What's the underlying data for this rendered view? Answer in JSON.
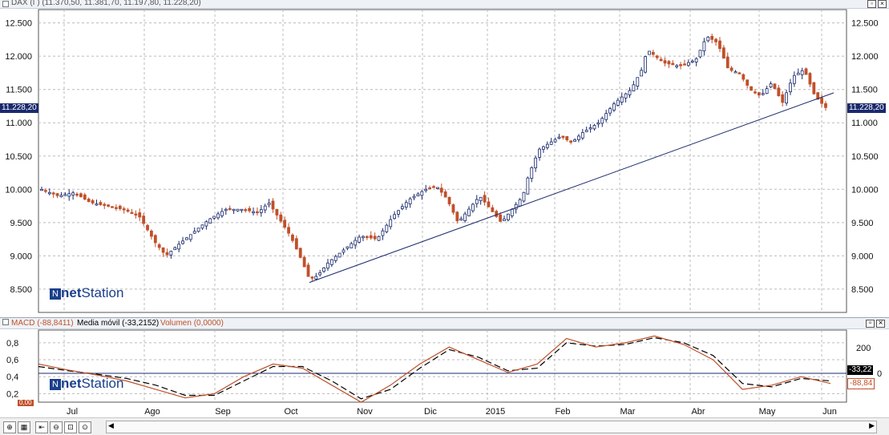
{
  "window": {
    "title": "DAX (I ) (11.370,50, 11.381,70, 11.197,80, 11.228,20)",
    "restore_btn": "▫",
    "close_btn": "×"
  },
  "sub_panel": {
    "macd_label": "MACD (-88,8411)",
    "ma_label": "Media móvil (-33,2152)",
    "vol_label": "Volumen (0,0000)",
    "restore_btn": "▫",
    "close_btn": "×"
  },
  "logo": {
    "brand": "net",
    "brand2": "Station"
  },
  "price_axis": {
    "ticks": [
      "12.500",
      "12.000",
      "11.500",
      "11.000",
      "10.500",
      "10.000",
      "9.500",
      "9.000",
      "8.500"
    ],
    "tick_values": [
      12500,
      12000,
      11500,
      11000,
      10500,
      10000,
      9500,
      9000,
      8500
    ],
    "current": "11.228,20"
  },
  "macd_axis": {
    "left_ticks": [
      "0,8",
      "0,6",
      "0,4",
      "0,2"
    ],
    "right_ticks": [
      "200",
      "0"
    ],
    "tag_ma": "-33,22",
    "tag_macd": "-88,84",
    "tag_left": "0,00"
  },
  "x_axis": {
    "labels": [
      "Jul",
      "Ago",
      "Sep",
      "Oct",
      "Nov",
      "Dic",
      "2015",
      "Feb",
      "Mar",
      "Abr",
      "May",
      "Jun"
    ]
  },
  "toolbar": {
    "icons": [
      "zoom-in-icon",
      "grid-icon",
      "scroll-left-icon",
      "zoom-out-icon",
      "zoom-region-icon",
      "zoom-fit-icon"
    ],
    "scroll_left": "◀",
    "scroll_right": "▶"
  },
  "colors": {
    "up": "#1a2a6c",
    "down": "#c0502a",
    "trend": "#1a2a6c",
    "macd": "#c0502a",
    "signal": "#000000"
  },
  "chart_data": [
    {
      "type": "candlestick",
      "title": "DAX (I ) (11.370,50, 11.381,70, 11.197,80, 11.228,20)",
      "ylim": [
        8150,
        12700
      ],
      "x": [
        "Jul",
        "Ago",
        "Sep",
        "Oct",
        "Nov",
        "Dic",
        "2015",
        "Feb",
        "Mar",
        "Abr",
        "May",
        "Jun"
      ],
      "close_path": [
        [
          0,
          10000
        ],
        [
          6,
          9900
        ],
        [
          12,
          9950
        ],
        [
          18,
          9800
        ],
        [
          24,
          9750
        ],
        [
          30,
          9700
        ],
        [
          36,
          9600
        ],
        [
          42,
          9200
        ],
        [
          46,
          9000
        ],
        [
          50,
          9150
        ],
        [
          56,
          9350
        ],
        [
          62,
          9550
        ],
        [
          68,
          9700
        ],
        [
          74,
          9700
        ],
        [
          80,
          9650
        ],
        [
          84,
          9800
        ],
        [
          88,
          9550
        ],
        [
          92,
          9300
        ],
        [
          96,
          8950
        ],
        [
          99,
          8650
        ],
        [
          102,
          8700
        ],
        [
          106,
          8900
        ],
        [
          112,
          9100
        ],
        [
          118,
          9300
        ],
        [
          124,
          9250
        ],
        [
          130,
          9600
        ],
        [
          136,
          9850
        ],
        [
          142,
          10000
        ],
        [
          146,
          10050
        ],
        [
          150,
          9850
        ],
        [
          154,
          9500
        ],
        [
          158,
          9700
        ],
        [
          162,
          9900
        ],
        [
          166,
          9700
        ],
        [
          170,
          9500
        ],
        [
          174,
          9700
        ],
        [
          178,
          9900
        ],
        [
          180,
          10200
        ],
        [
          184,
          10600
        ],
        [
          188,
          10700
        ],
        [
          192,
          10800
        ],
        [
          196,
          10700
        ],
        [
          200,
          10850
        ],
        [
          206,
          11000
        ],
        [
          212,
          11300
        ],
        [
          218,
          11500
        ],
        [
          222,
          11800
        ],
        [
          224,
          12100
        ],
        [
          230,
          11900
        ],
        [
          236,
          11850
        ],
        [
          242,
          11950
        ],
        [
          246,
          12300
        ],
        [
          250,
          12200
        ],
        [
          254,
          11800
        ],
        [
          258,
          11750
        ],
        [
          262,
          11500
        ],
        [
          266,
          11400
        ],
        [
          270,
          11600
        ],
        [
          274,
          11300
        ],
        [
          278,
          11700
        ],
        [
          282,
          11800
        ],
        [
          286,
          11400
        ],
        [
          290,
          11228
        ]
      ],
      "trend_line": [
        [
          99,
          8600
        ],
        [
          290,
          11450
        ]
      ],
      "last": 11228.2
    },
    {
      "type": "line",
      "title": "MACD (-88,8411)",
      "series": [
        {
          "name": "MACD (-88,8411)",
          "values": [
            0.55,
            0.48,
            0.42,
            0.35,
            0.25,
            0.15,
            0.2,
            0.4,
            0.55,
            0.5,
            0.3,
            0.1,
            0.3,
            0.55,
            0.75,
            0.6,
            0.45,
            0.55,
            0.85,
            0.75,
            0.8,
            0.88,
            0.78,
            0.6,
            0.25,
            0.3,
            0.4,
            0.32
          ]
        },
        {
          "name": "Media móvil (-33,2152)",
          "values": [
            0.52,
            0.47,
            0.43,
            0.38,
            0.3,
            0.18,
            0.18,
            0.35,
            0.52,
            0.52,
            0.35,
            0.14,
            0.25,
            0.5,
            0.72,
            0.63,
            0.47,
            0.5,
            0.8,
            0.76,
            0.78,
            0.86,
            0.8,
            0.65,
            0.32,
            0.28,
            0.38,
            0.35
          ]
        }
      ],
      "ylim": [
        0.1,
        0.95
      ]
    }
  ]
}
